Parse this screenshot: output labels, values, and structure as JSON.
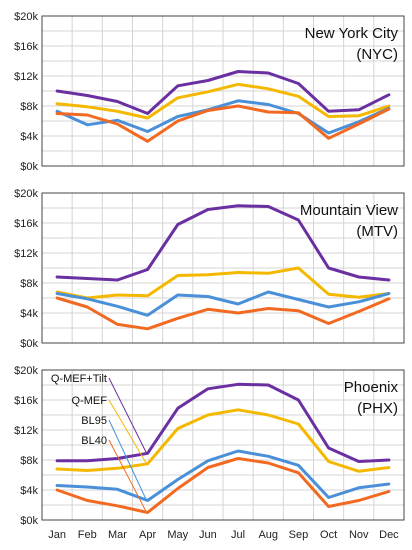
{
  "chart_data": {
    "type": "line",
    "months": [
      "Jan",
      "Feb",
      "Mar",
      "Apr",
      "May",
      "Jun",
      "Jul",
      "Aug",
      "Sep",
      "Oct",
      "Nov",
      "Dec"
    ],
    "yticks": [
      "$0k",
      "$4k",
      "$8k",
      "$12k",
      "$16k",
      "$20k"
    ],
    "ylim": [
      0,
      20
    ],
    "grid": true,
    "colors": {
      "Q-MEF+Tilt": "#6a2fa0",
      "Q-MEF": "#f5b800",
      "BL95": "#4a90d9",
      "BL40": "#f26a21"
    },
    "legend_entries": [
      "Q-MEF+Tilt",
      "Q-MEF",
      "BL95",
      "BL40"
    ],
    "panels": [
      {
        "title_line1": "New York City",
        "title_line2": "(NYC)",
        "series": [
          {
            "name": "Q-MEF+Tilt",
            "values": [
              10.0,
              9.4,
              8.6,
              7.0,
              10.7,
              11.4,
              12.6,
              12.4,
              11.0,
              7.3,
              7.5,
              9.5
            ]
          },
          {
            "name": "Q-MEF",
            "values": [
              8.3,
              7.9,
              7.3,
              6.4,
              9.1,
              9.9,
              10.9,
              10.3,
              9.3,
              6.6,
              6.7,
              8.0
            ]
          },
          {
            "name": "BL95",
            "values": [
              7.3,
              5.5,
              6.1,
              4.6,
              6.6,
              7.5,
              8.7,
              8.2,
              7.0,
              4.4,
              5.9,
              7.7
            ]
          },
          {
            "name": "BL40",
            "values": [
              7.0,
              6.8,
              5.6,
              3.3,
              6.0,
              7.4,
              8.0,
              7.2,
              7.1,
              3.7,
              5.6,
              7.6
            ]
          }
        ]
      },
      {
        "title_line1": "Mountain View",
        "title_line2": "(MTV)",
        "series": [
          {
            "name": "Q-MEF+Tilt",
            "values": [
              8.8,
              8.6,
              8.4,
              9.8,
              15.8,
              17.8,
              18.3,
              18.2,
              16.4,
              10.0,
              8.8,
              8.4
            ]
          },
          {
            "name": "Q-MEF",
            "values": [
              6.8,
              6.0,
              6.4,
              6.3,
              9.0,
              9.1,
              9.4,
              9.3,
              10.0,
              6.5,
              6.1,
              6.6
            ]
          },
          {
            "name": "BL95",
            "values": [
              6.6,
              5.9,
              4.9,
              3.7,
              6.4,
              6.2,
              5.2,
              6.8,
              5.8,
              4.8,
              5.5,
              6.6
            ]
          },
          {
            "name": "BL40",
            "values": [
              6.0,
              4.8,
              2.5,
              1.9,
              3.3,
              4.5,
              4.0,
              4.6,
              4.3,
              2.6,
              4.2,
              5.9
            ]
          }
        ]
      },
      {
        "title_line1": "Phoenix",
        "title_line2": "(PHX)",
        "series": [
          {
            "name": "Q-MEF+Tilt",
            "values": [
              7.9,
              7.9,
              8.2,
              8.9,
              14.9,
              17.5,
              18.1,
              18.0,
              16.0,
              9.6,
              7.8,
              8.0
            ]
          },
          {
            "name": "Q-MEF",
            "values": [
              6.8,
              6.6,
              6.9,
              7.5,
              12.2,
              14.0,
              14.7,
              14.0,
              12.8,
              7.8,
              6.5,
              7.0
            ]
          },
          {
            "name": "BL95",
            "values": [
              4.6,
              4.4,
              4.1,
              2.6,
              5.4,
              7.9,
              9.2,
              8.5,
              7.3,
              3.0,
              4.3,
              4.8
            ]
          },
          {
            "name": "BL40",
            "values": [
              4.0,
              2.6,
              1.9,
              1.0,
              4.2,
              7.0,
              8.2,
              7.6,
              6.3,
              1.8,
              2.6,
              3.8
            ]
          }
        ]
      }
    ]
  }
}
